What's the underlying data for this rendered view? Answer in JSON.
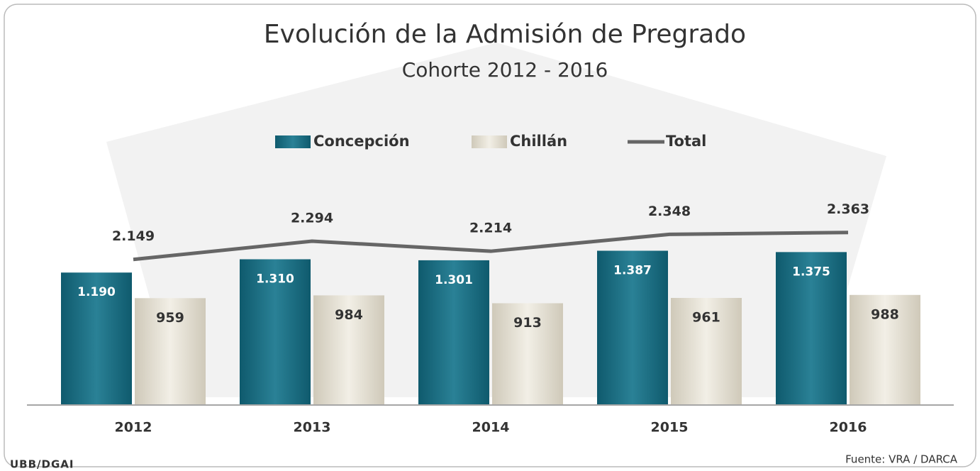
{
  "chart_data": {
    "type": "bar",
    "title": "Evolución de la Admisión de Pregrado",
    "subtitle": "Cohorte 2012 - 2016",
    "categories": [
      "2012",
      "2013",
      "2014",
      "2015",
      "2016"
    ],
    "series": [
      {
        "name": "Concepción",
        "color": "#1b6f84",
        "values": [
          1190,
          1310,
          1301,
          1387,
          1375
        ],
        "value_labels": [
          "1.190",
          "1.310",
          "1.301",
          "1.387",
          "1.375"
        ]
      },
      {
        "name": "Chillán",
        "color": "#e2ddcf",
        "values": [
          959,
          984,
          913,
          961,
          988
        ],
        "value_labels": [
          "959",
          "984",
          "913",
          "961",
          "988"
        ]
      },
      {
        "name": "Total",
        "type": "line",
        "axis": "y2",
        "color": "#666666",
        "values": [
          2149,
          2294,
          2214,
          2348,
          2363
        ],
        "value_labels": [
          "2.149",
          "2.294",
          "2.214",
          "2.348",
          "2.363"
        ]
      }
    ],
    "ylim": [
      0,
      2050
    ],
    "y2lim": [
      1000,
      2800
    ],
    "legend": "top",
    "source": "Fuente: VRA / DARCA",
    "footer": "UBB/DGAI"
  }
}
